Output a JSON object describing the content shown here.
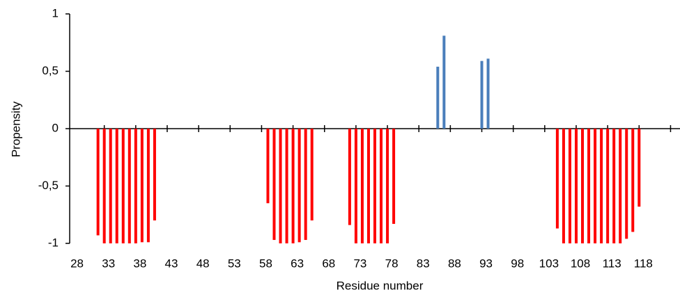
{
  "chart_data": {
    "type": "bar",
    "x_label": "Residue number",
    "y_label": "Propensity",
    "categories": [
      null,
      "28",
      null,
      null,
      null,
      null,
      "33",
      null,
      null,
      null,
      null,
      "38",
      null,
      null,
      null,
      null,
      "43",
      null,
      null,
      null,
      null,
      "48",
      null,
      null,
      null,
      null,
      "53",
      null,
      null,
      null,
      null,
      "58",
      null,
      null,
      null,
      null,
      "63",
      null,
      null,
      null,
      null,
      "68",
      null,
      null,
      null,
      null,
      "73",
      null,
      null,
      null,
      null,
      "78",
      null,
      null,
      null,
      null,
      "83",
      null,
      null,
      null,
      null,
      "88",
      null,
      null,
      null,
      null,
      "93",
      null,
      null,
      null,
      null,
      "98",
      null,
      null,
      null,
      null,
      "103",
      null,
      null,
      null,
      null,
      "108",
      null,
      null,
      null,
      null,
      "113",
      null,
      null,
      null,
      null,
      "118",
      null,
      null,
      null,
      null,
      null
    ],
    "values": [
      0,
      0,
      0,
      0,
      -0.93,
      -1,
      -1,
      -1,
      -1,
      -1,
      -1,
      -0.99,
      -0.99,
      -0.8,
      0,
      0,
      0,
      0,
      0,
      0,
      0,
      0,
      0,
      0,
      0,
      0,
      0,
      0,
      0,
      0,
      0,
      -0.65,
      -0.97,
      -1,
      -1,
      -1,
      -0.99,
      -0.97,
      -0.8,
      0,
      0,
      0,
      0,
      0,
      -0.84,
      -1,
      -1,
      -1,
      -1,
      -1,
      -1,
      -0.83,
      0,
      0,
      0,
      0,
      0,
      0,
      0.54,
      0.81,
      0,
      0,
      0,
      0,
      0,
      0.59,
      0.61,
      0,
      0,
      0,
      0,
      0,
      0,
      0,
      0,
      0,
      0,
      -0.87,
      -1,
      -1,
      -1,
      -1,
      -1,
      -1,
      -1,
      -1,
      -1,
      -1,
      -0.96,
      -0.9,
      -0.68,
      0,
      0,
      0,
      0,
      0,
      0
    ],
    "color": "#4a7ebb",
    "negative_color": "#ff0000",
    "ylim": [
      -1,
      1
    ],
    "yticks": [
      -1,
      {
        "value": -0.5,
        "label": "-0,5"
      },
      0,
      {
        "value": 0.5,
        "label": "0,5"
      },
      1
    ]
  }
}
